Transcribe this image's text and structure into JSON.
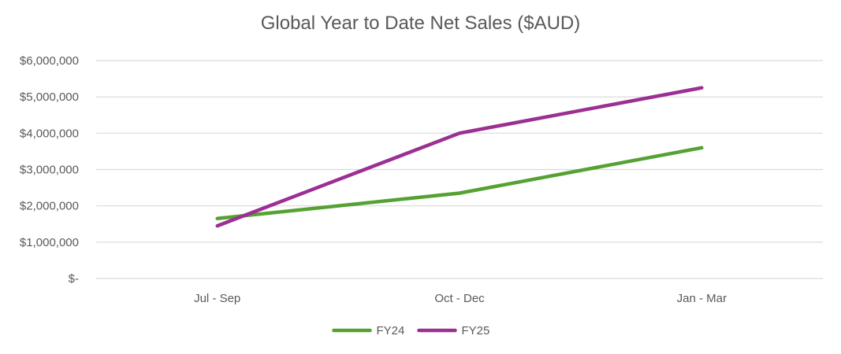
{
  "chart_data": {
    "type": "line",
    "title": "Global Year to Date Net Sales ($AUD)",
    "categories": [
      "Jul - Sep",
      "Oct - Dec",
      "Jan - Mar"
    ],
    "ylim": [
      0,
      6000000
    ],
    "y_ticks": [
      {
        "value": 0,
        "label": "$-"
      },
      {
        "value": 1000000,
        "label": "$1,000,000"
      },
      {
        "value": 2000000,
        "label": "$2,000,000"
      },
      {
        "value": 3000000,
        "label": "$3,000,000"
      },
      {
        "value": 4000000,
        "label": "$4,000,000"
      },
      {
        "value": 5000000,
        "label": "$5,000,000"
      },
      {
        "value": 6000000,
        "label": "$6,000,000"
      }
    ],
    "grid": true,
    "legend": "bottom",
    "series": [
      {
        "name": "FY24",
        "color": "#55A132",
        "values": [
          1650000,
          2350000,
          3600000
        ]
      },
      {
        "name": "FY25",
        "color": "#9B2F93",
        "values": [
          1450000,
          4000000,
          5250000
        ]
      }
    ]
  }
}
